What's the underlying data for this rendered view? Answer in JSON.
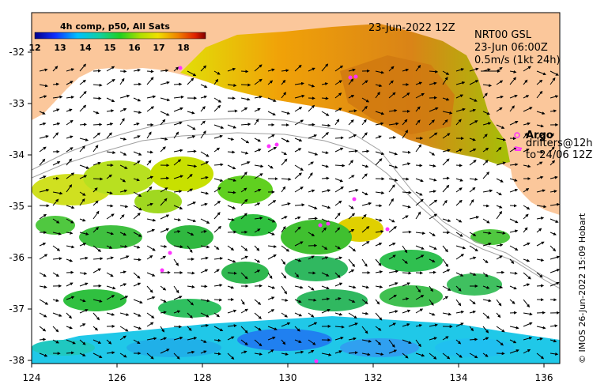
{
  "date_label": "23-Jun-2022 12Z",
  "product": {
    "line1": "NRT00 GSL",
    "line2": "23-Jun 06:00Z",
    "line3": "0.5m/s (1kt 24h)"
  },
  "colorbar": {
    "title": "4h comp, p50, All Sats",
    "ticks": [
      "12",
      "13",
      "14",
      "15",
      "16",
      "17",
      "18"
    ],
    "min": 12,
    "max": 18.8
  },
  "legend": {
    "argo_label": "Argo",
    "drifters_line1": "drifters@12h",
    "drifters_line2": "to 24/06 12Z"
  },
  "credit": "© IMOS 26-Jun-2022 15:09 Hobart",
  "axes": {
    "x_ticks": [
      "124",
      "126",
      "128",
      "130",
      "132",
      "134",
      "136"
    ],
    "y_ticks": [
      "-32",
      "-33",
      "-34",
      "-35",
      "-36",
      "-37",
      "-38"
    ]
  },
  "colors": {
    "land": "#fbc79b",
    "argo": "#ff33ff",
    "bathymetry": "#a0a0a0"
  }
}
